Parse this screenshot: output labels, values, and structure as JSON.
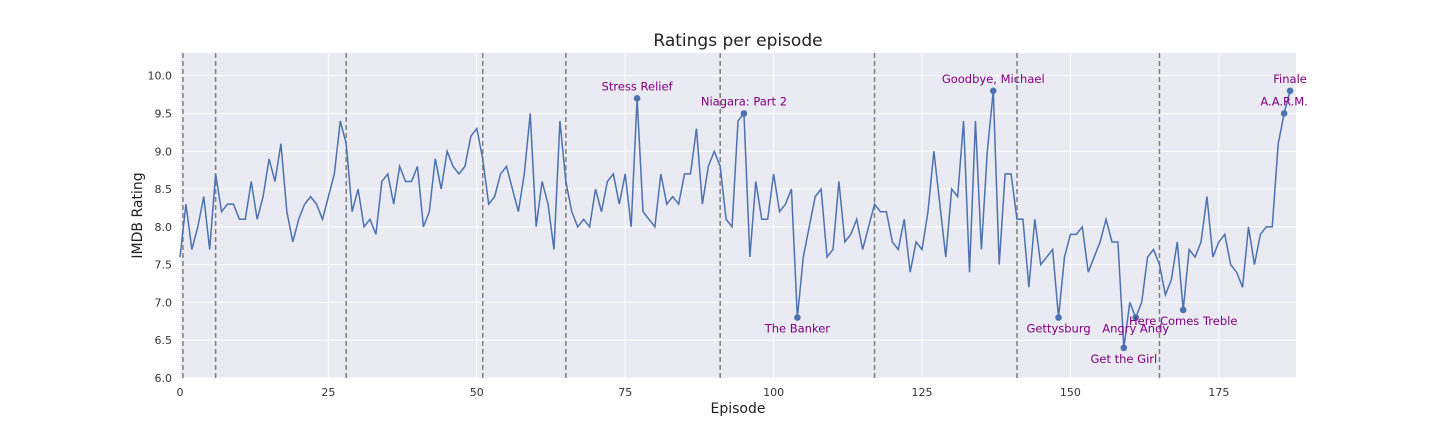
{
  "chart_data": {
    "type": "line",
    "title": "Ratings per episode",
    "xlabel": "Episode",
    "ylabel": "IMDB Rating",
    "xlim": [
      0,
      188
    ],
    "ylim": [
      6.0,
      10.3
    ],
    "xticks": [
      0,
      25,
      50,
      75,
      100,
      125,
      150,
      175
    ],
    "yticks": [
      6.0,
      6.5,
      7.0,
      7.5,
      8.0,
      8.5,
      9.0,
      9.5,
      10.0
    ],
    "grid": true,
    "colors": {
      "line": "#4c72b0",
      "annotation": "#800080",
      "background": "#eaeaf2",
      "season_divider": "#808080"
    },
    "season_boundaries": [
      0.5,
      6,
      28,
      51,
      65,
      91,
      117,
      141,
      165
    ],
    "series": [
      {
        "values": [
          7.6,
          8.3,
          7.7,
          8.0,
          8.4,
          7.7,
          8.7,
          8.2,
          8.3,
          8.3,
          8.1,
          8.1,
          8.6,
          8.1,
          8.4,
          8.9,
          8.6,
          9.1,
          8.2,
          7.8,
          8.1,
          8.3,
          8.4,
          8.3,
          8.1,
          8.4,
          8.7,
          9.4,
          9.1,
          8.2,
          8.5,
          8.0,
          8.1,
          7.9,
          8.6,
          8.7,
          8.3,
          8.8,
          8.6,
          8.6,
          8.8,
          8.0,
          8.2,
          8.9,
          8.5,
          9.0,
          8.8,
          8.7,
          8.8,
          9.2,
          9.3,
          8.9,
          8.3,
          8.4,
          8.7,
          8.8,
          8.5,
          8.2,
          8.7,
          9.5,
          8.0,
          8.6,
          8.3,
          7.7,
          9.4,
          8.6,
          8.2,
          8.0,
          8.1,
          8.0,
          8.5,
          8.2,
          8.6,
          8.7,
          8.3,
          8.7,
          8.0,
          9.7,
          8.2,
          8.1,
          8.0,
          8.7,
          8.3,
          8.4,
          8.3,
          8.7,
          8.7,
          9.3,
          8.3,
          8.8,
          9.0,
          8.8,
          8.1,
          8.0,
          9.4,
          9.5,
          7.6,
          8.6,
          8.1,
          8.1,
          8.7,
          8.2,
          8.3,
          8.5,
          6.8,
          7.6,
          8.0,
          8.4,
          8.5,
          7.6,
          7.7,
          8.6,
          7.8,
          7.9,
          8.1,
          7.7,
          8.0,
          8.3,
          8.2,
          8.2,
          7.8,
          7.7,
          8.1,
          7.4,
          7.8,
          7.7,
          8.2,
          9.0,
          8.3,
          7.6,
          8.5,
          8.4,
          9.4,
          7.4,
          9.4,
          7.7,
          9.0,
          9.8,
          7.5,
          8.7,
          8.7,
          8.1,
          8.1,
          7.2,
          8.1,
          7.5,
          7.6,
          7.7,
          6.8,
          7.6,
          7.9,
          7.9,
          8.0,
          7.4,
          7.6,
          7.8,
          8.1,
          7.8,
          7.8,
          6.4,
          7.0,
          6.8,
          7.0,
          7.6,
          7.7,
          7.5,
          7.1,
          7.3,
          7.8,
          6.9,
          7.7,
          7.6,
          7.8,
          8.4,
          7.6,
          7.8,
          7.9,
          7.5,
          7.4,
          7.2,
          8.0,
          7.5,
          7.9,
          8.0,
          8.0,
          9.1,
          9.5,
          9.8
        ]
      }
    ],
    "annotations": [
      {
        "x": 77,
        "y": 9.7,
        "label": "Stress Relief",
        "position": "above"
      },
      {
        "x": 95,
        "y": 9.5,
        "label": "Niagara: Part 2",
        "position": "above"
      },
      {
        "x": 104,
        "y": 6.8,
        "label": "The Banker",
        "position": "below"
      },
      {
        "x": 137,
        "y": 9.8,
        "label": "Goodbye, Michael",
        "position": "above"
      },
      {
        "x": 148,
        "y": 6.8,
        "label": "Gettysburg",
        "position": "below"
      },
      {
        "x": 159,
        "y": 6.4,
        "label": "Get the Girl",
        "position": "below"
      },
      {
        "x": 161,
        "y": 6.8,
        "label": "Angry Andy",
        "position": "below"
      },
      {
        "x": 169,
        "y": 6.9,
        "label": "Here Comes Treble",
        "position": "below"
      },
      {
        "x": 186,
        "y": 9.5,
        "label": "A.A.R.M.",
        "position": "above"
      },
      {
        "x": 187,
        "y": 9.8,
        "label": "Finale",
        "position": "above"
      }
    ]
  }
}
